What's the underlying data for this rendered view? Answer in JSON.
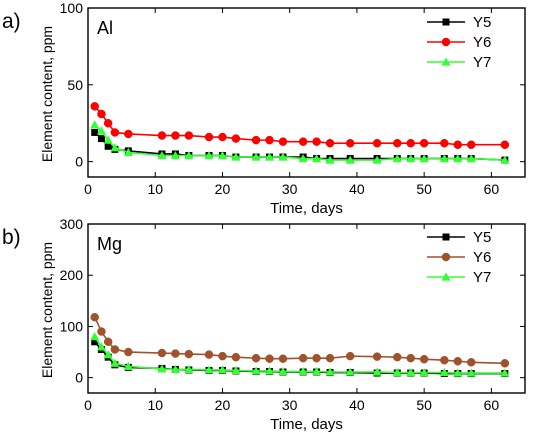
{
  "chart_data": [
    {
      "type": "line",
      "panel_label": "a)",
      "element_label": "Al",
      "xlabel": "Time, days",
      "ylabel": "Element content, ppm",
      "xlim": [
        0,
        65
      ],
      "ylim": [
        -10,
        100
      ],
      "xticks": [
        0,
        10,
        20,
        30,
        40,
        50,
        60
      ],
      "yticks": [
        0,
        50,
        100
      ],
      "legend_position": "top-right",
      "series": [
        {
          "name": "Y5",
          "color": "#000000",
          "marker": "square",
          "x": [
            1,
            2,
            3,
            4,
            6,
            11,
            13,
            15,
            18,
            20,
            22,
            25,
            27,
            29,
            32,
            34,
            36,
            39,
            43,
            46,
            48,
            50,
            53,
            55,
            57,
            62
          ],
          "y": [
            19,
            15,
            10,
            8,
            7,
            5,
            5,
            4,
            4,
            4,
            3,
            3,
            3,
            3,
            3,
            2,
            2,
            2,
            2,
            2,
            2,
            2,
            2,
            2,
            2,
            1
          ]
        },
        {
          "name": "Y6",
          "color": "#ff0000",
          "marker": "circle",
          "x": [
            1,
            2,
            3,
            4,
            6,
            11,
            13,
            15,
            18,
            20,
            22,
            25,
            27,
            29,
            32,
            34,
            36,
            39,
            43,
            46,
            48,
            50,
            53,
            55,
            57,
            62
          ],
          "y": [
            36,
            31,
            25,
            19,
            18,
            17,
            17,
            17,
            16,
            16,
            15,
            14,
            14,
            13,
            13,
            13,
            12,
            12,
            12,
            12,
            12,
            12,
            12,
            11,
            11,
            11
          ]
        },
        {
          "name": "Y7",
          "color": "#33ff33",
          "marker": "triangle",
          "x": [
            1,
            2,
            3,
            4,
            6,
            11,
            13,
            15,
            18,
            20,
            22,
            25,
            27,
            29,
            32,
            34,
            36,
            39,
            43,
            46,
            48,
            50,
            53,
            55,
            57,
            62
          ],
          "y": [
            24,
            20,
            14,
            9,
            6,
            4,
            4,
            4,
            4,
            4,
            3,
            3,
            3,
            3,
            2,
            2,
            1,
            1,
            1,
            2,
            2,
            2,
            2,
            2,
            2,
            1
          ]
        }
      ]
    },
    {
      "type": "line",
      "panel_label": "b)",
      "element_label": "Mg",
      "xlabel": "Time, days",
      "ylabel": "Element content, ppm",
      "xlim": [
        0,
        65
      ],
      "ylim": [
        -30,
        300
      ],
      "xticks": [
        0,
        10,
        20,
        30,
        40,
        50,
        60
      ],
      "yticks": [
        0,
        100,
        200,
        300
      ],
      "legend_position": "top-right",
      "series": [
        {
          "name": "Y5",
          "color": "#000000",
          "marker": "square",
          "x": [
            1,
            2,
            3,
            4,
            6,
            11,
            13,
            15,
            18,
            20,
            22,
            25,
            27,
            29,
            32,
            34,
            36,
            39,
            43,
            46,
            48,
            50,
            53,
            55,
            57,
            62
          ],
          "y": [
            70,
            55,
            40,
            25,
            20,
            18,
            16,
            15,
            14,
            14,
            13,
            12,
            12,
            11,
            11,
            11,
            10,
            10,
            9,
            9,
            9,
            9,
            8,
            8,
            8,
            8
          ]
        },
        {
          "name": "Y6",
          "color": "#a0522d",
          "marker": "circle",
          "x": [
            1,
            2,
            3,
            4,
            6,
            11,
            13,
            15,
            18,
            20,
            22,
            25,
            27,
            29,
            32,
            34,
            36,
            39,
            43,
            46,
            48,
            50,
            53,
            55,
            57,
            62
          ],
          "y": [
            118,
            90,
            70,
            55,
            50,
            48,
            47,
            46,
            45,
            42,
            40,
            38,
            37,
            37,
            38,
            38,
            38,
            42,
            41,
            40,
            38,
            36,
            34,
            32,
            30,
            28
          ]
        },
        {
          "name": "Y7",
          "color": "#33ff33",
          "marker": "triangle",
          "x": [
            1,
            2,
            3,
            4,
            6,
            11,
            13,
            15,
            18,
            20,
            22,
            25,
            27,
            29,
            32,
            34,
            36,
            39,
            43,
            46,
            48,
            50,
            53,
            55,
            57,
            62
          ],
          "y": [
            80,
            60,
            45,
            28,
            22,
            17,
            16,
            16,
            15,
            15,
            14,
            13,
            13,
            12,
            12,
            12,
            11,
            11,
            11,
            10,
            10,
            10,
            10,
            9,
            9,
            9
          ]
        }
      ]
    }
  ]
}
